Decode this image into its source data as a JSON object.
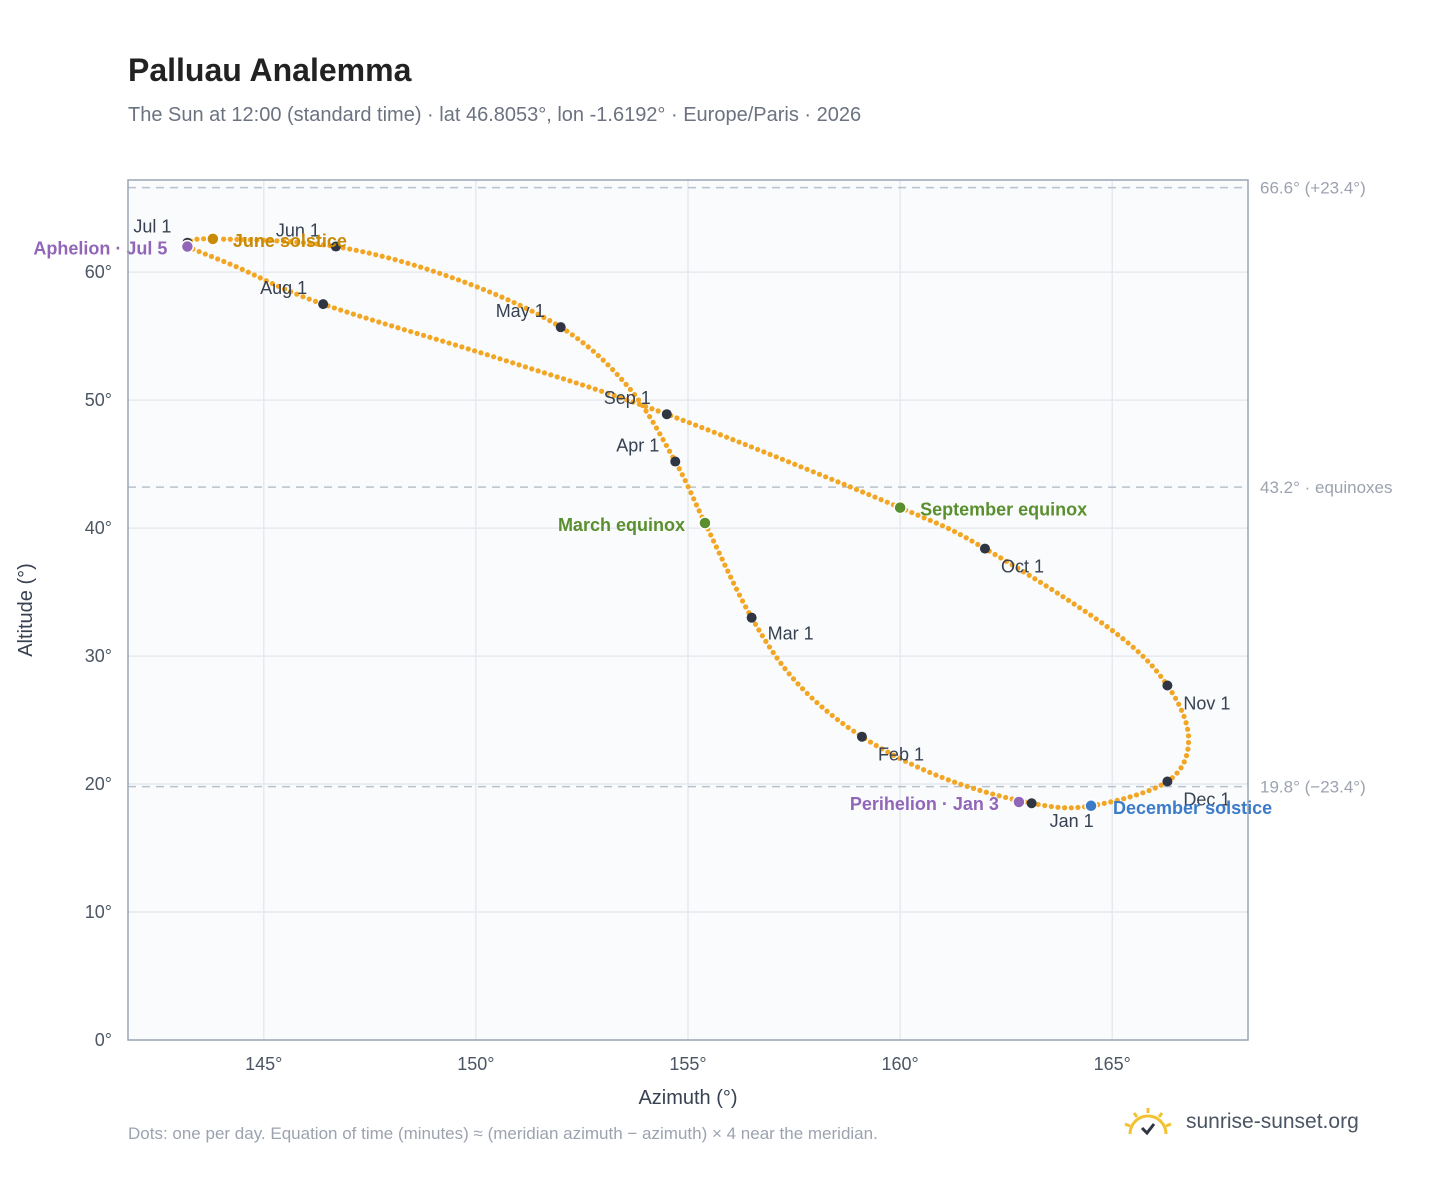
{
  "header": {
    "title": "Palluau Analemma",
    "subtitle": "The Sun at 12:00 (standard time) · lat 46.8053°, lon -1.6192° · Europe/Paris · 2026"
  },
  "footer": {
    "note": "Dots: one per day. Equation of time (minutes) ≈ (meridian azimuth − azimuth) × 4 near the meridian.",
    "brand": "sunrise-sunset.org"
  },
  "colors": {
    "curve": "#f2a623",
    "month_marker": "#2f3542",
    "solstice_june": "#c98a06",
    "solstice_december": "#3b7bc8",
    "equinox": "#5a8f2e",
    "apsis": "#9166b8",
    "grid": "#e6e9ee",
    "reference_line": "#b8c2cc",
    "plot_bg": "#f9fbfd",
    "frame": "#9aa6b4"
  },
  "chart_data": {
    "type": "scatter",
    "xlabel": "Azimuth (°)",
    "ylabel": "Altitude (°)",
    "xlim": [
      141.8,
      168.2
    ],
    "ylim": [
      0,
      67.2
    ],
    "xticks": [
      {
        "value": 145,
        "label": "145°"
      },
      {
        "value": 150,
        "label": "150°"
      },
      {
        "value": 155,
        "label": "155°"
      },
      {
        "value": 160,
        "label": "160°"
      },
      {
        "value": 165,
        "label": "165°"
      }
    ],
    "yticks": [
      {
        "value": 0,
        "label": "0°"
      },
      {
        "value": 10,
        "label": "10°"
      },
      {
        "value": 20,
        "label": "20°"
      },
      {
        "value": 30,
        "label": "30°"
      },
      {
        "value": 40,
        "label": "40°"
      },
      {
        "value": 50,
        "label": "50°"
      },
      {
        "value": 60,
        "label": "60°"
      }
    ],
    "grid": true,
    "reference_lines": [
      {
        "y": 66.6,
        "label": "66.6° (+23.4°)"
      },
      {
        "y": 43.2,
        "label": "43.2° · equinoxes"
      },
      {
        "y": 19.8,
        "label": "19.8° (−23.4°)"
      }
    ],
    "month_markers": [
      {
        "label": "Jan 1",
        "azimuth": 163.1,
        "altitude": 18.5
      },
      {
        "label": "Feb 1",
        "azimuth": 159.1,
        "altitude": 23.7
      },
      {
        "label": "Mar 1",
        "azimuth": 156.5,
        "altitude": 33.0
      },
      {
        "label": "Apr 1",
        "azimuth": 154.7,
        "altitude": 45.2
      },
      {
        "label": "May 1",
        "azimuth": 152.0,
        "altitude": 55.7
      },
      {
        "label": "Jun 1",
        "azimuth": 146.7,
        "altitude": 62.0
      },
      {
        "label": "Jul 1",
        "azimuth": 143.2,
        "altitude": 62.3
      },
      {
        "label": "Aug 1",
        "azimuth": 146.4,
        "altitude": 57.5
      },
      {
        "label": "Sep 1",
        "azimuth": 154.5,
        "altitude": 48.9
      },
      {
        "label": "Oct 1",
        "azimuth": 162.0,
        "altitude": 38.4
      },
      {
        "label": "Nov 1",
        "azimuth": 166.3,
        "altitude": 27.7
      },
      {
        "label": "Dec 1",
        "azimuth": 166.3,
        "altitude": 20.2
      }
    ],
    "events": [
      {
        "label": "June solstice",
        "azimuth": 143.8,
        "altitude": 62.6,
        "color": "#c98a06"
      },
      {
        "label": "December solstice",
        "azimuth": 164.5,
        "altitude": 18.3,
        "color": "#3b7bc8"
      },
      {
        "label": "March equinox",
        "azimuth": 155.4,
        "altitude": 40.4,
        "color": "#5a8f2e"
      },
      {
        "label": "September equinox",
        "azimuth": 160.0,
        "altitude": 41.6,
        "color": "#5a8f2e"
      },
      {
        "label": "Aphelion · Jul 5",
        "azimuth": 143.2,
        "altitude": 62.0,
        "color": "#9166b8"
      },
      {
        "label": "Perihelion · Jan 3",
        "azimuth": 162.8,
        "altitude": 18.6,
        "color": "#9166b8"
      }
    ],
    "curve_path": [
      [
        163.1,
        18.5
      ],
      [
        161.0,
        20.5
      ],
      [
        159.1,
        23.7
      ],
      [
        157.6,
        27.8
      ],
      [
        156.5,
        33.0
      ],
      [
        155.4,
        40.4
      ],
      [
        154.7,
        45.2
      ],
      [
        153.6,
        51.0
      ],
      [
        152.0,
        55.7
      ],
      [
        149.5,
        59.5
      ],
      [
        146.7,
        62.0
      ],
      [
        143.8,
        62.6
      ],
      [
        143.2,
        62.3
      ],
      [
        143.2,
        62.0
      ],
      [
        144.3,
        60.5
      ],
      [
        146.4,
        57.5
      ],
      [
        150.5,
        53.3
      ],
      [
        154.5,
        48.9
      ],
      [
        160.0,
        41.6
      ],
      [
        162.0,
        38.4
      ],
      [
        165.0,
        32.0
      ],
      [
        166.3,
        27.7
      ],
      [
        166.8,
        23.5
      ],
      [
        166.3,
        20.2
      ],
      [
        164.5,
        18.3
      ],
      [
        163.1,
        18.5
      ]
    ]
  }
}
